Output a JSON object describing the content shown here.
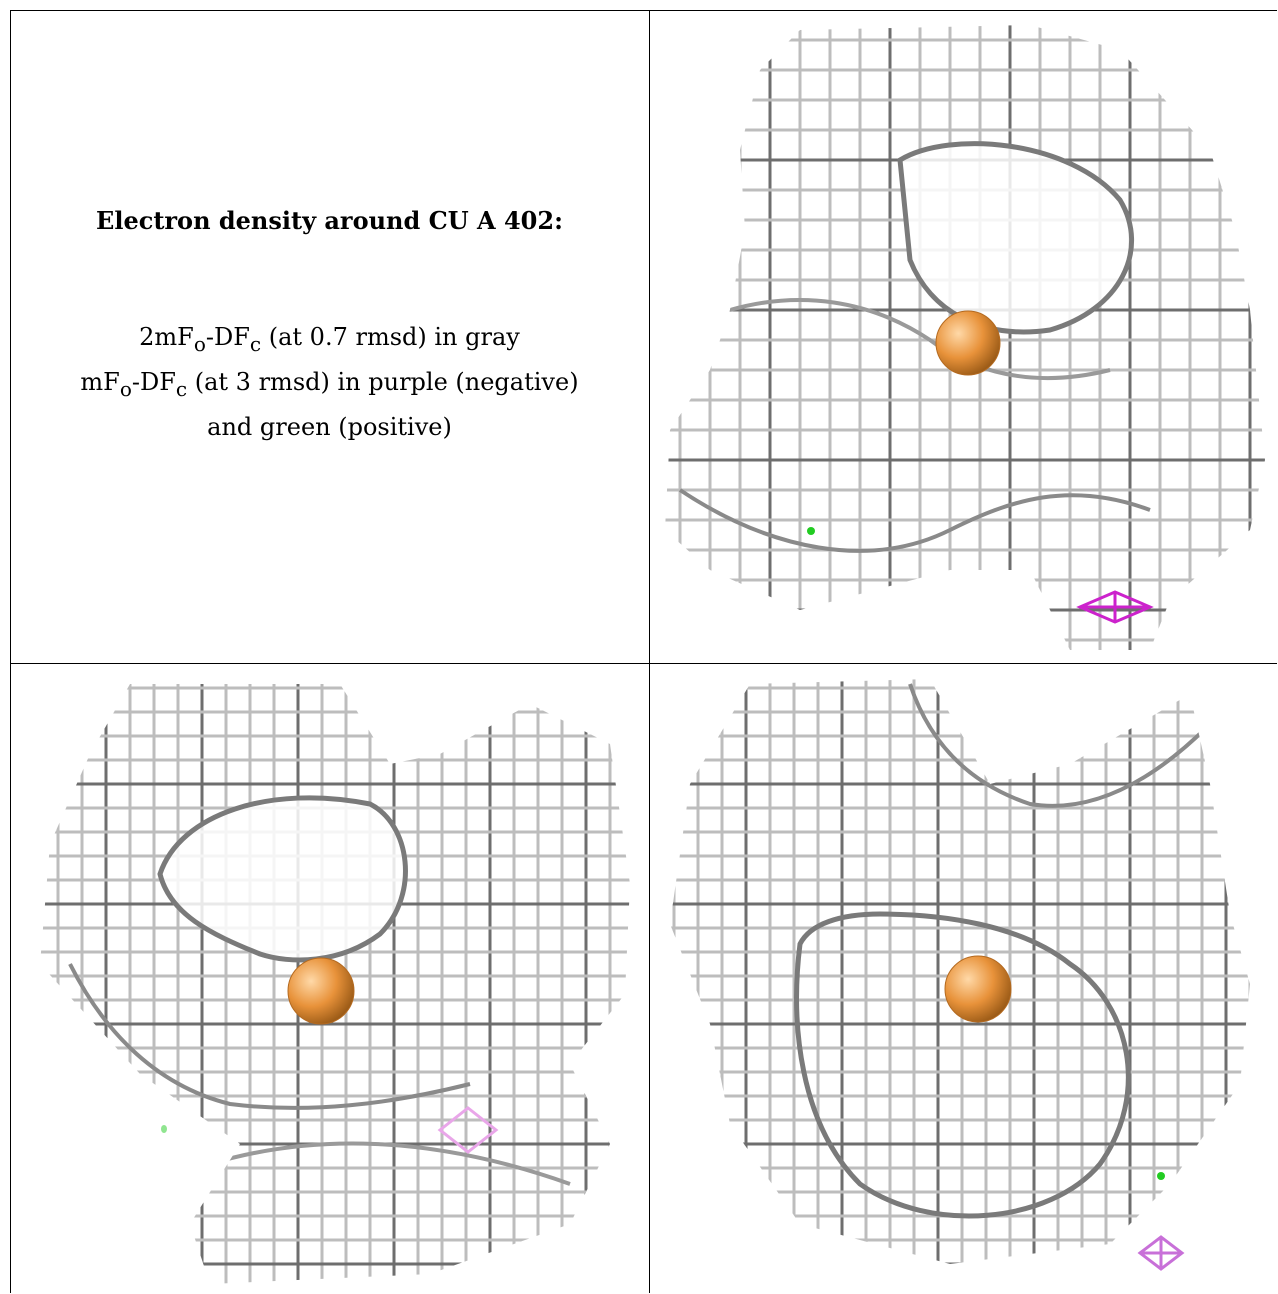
{
  "caption": {
    "title": "Electron density around CU A 402:",
    "line1": {
      "a": "2mF",
      "o": "o",
      "b": "-DF",
      "c": "c",
      "rest": " (at 0.7 rmsd) in gray"
    },
    "line2": {
      "a": "mF",
      "o": "o",
      "b": "-DF",
      "c": "c",
      "rest": " (at 3 rmsd) in purple (negative)"
    },
    "line3": "and green (positive)"
  },
  "colors": {
    "mesh_gray": "#bdbdbd",
    "mesh_dark": "#6e6e6e",
    "copper": "#e8923a",
    "negative": "#cc22cc",
    "positive": "#22cc22"
  },
  "views": [
    {
      "id": "view-1",
      "atom": "CU A 402"
    },
    {
      "id": "view-2",
      "atom": "CU A 402"
    },
    {
      "id": "view-3",
      "atom": "CU A 402"
    }
  ]
}
